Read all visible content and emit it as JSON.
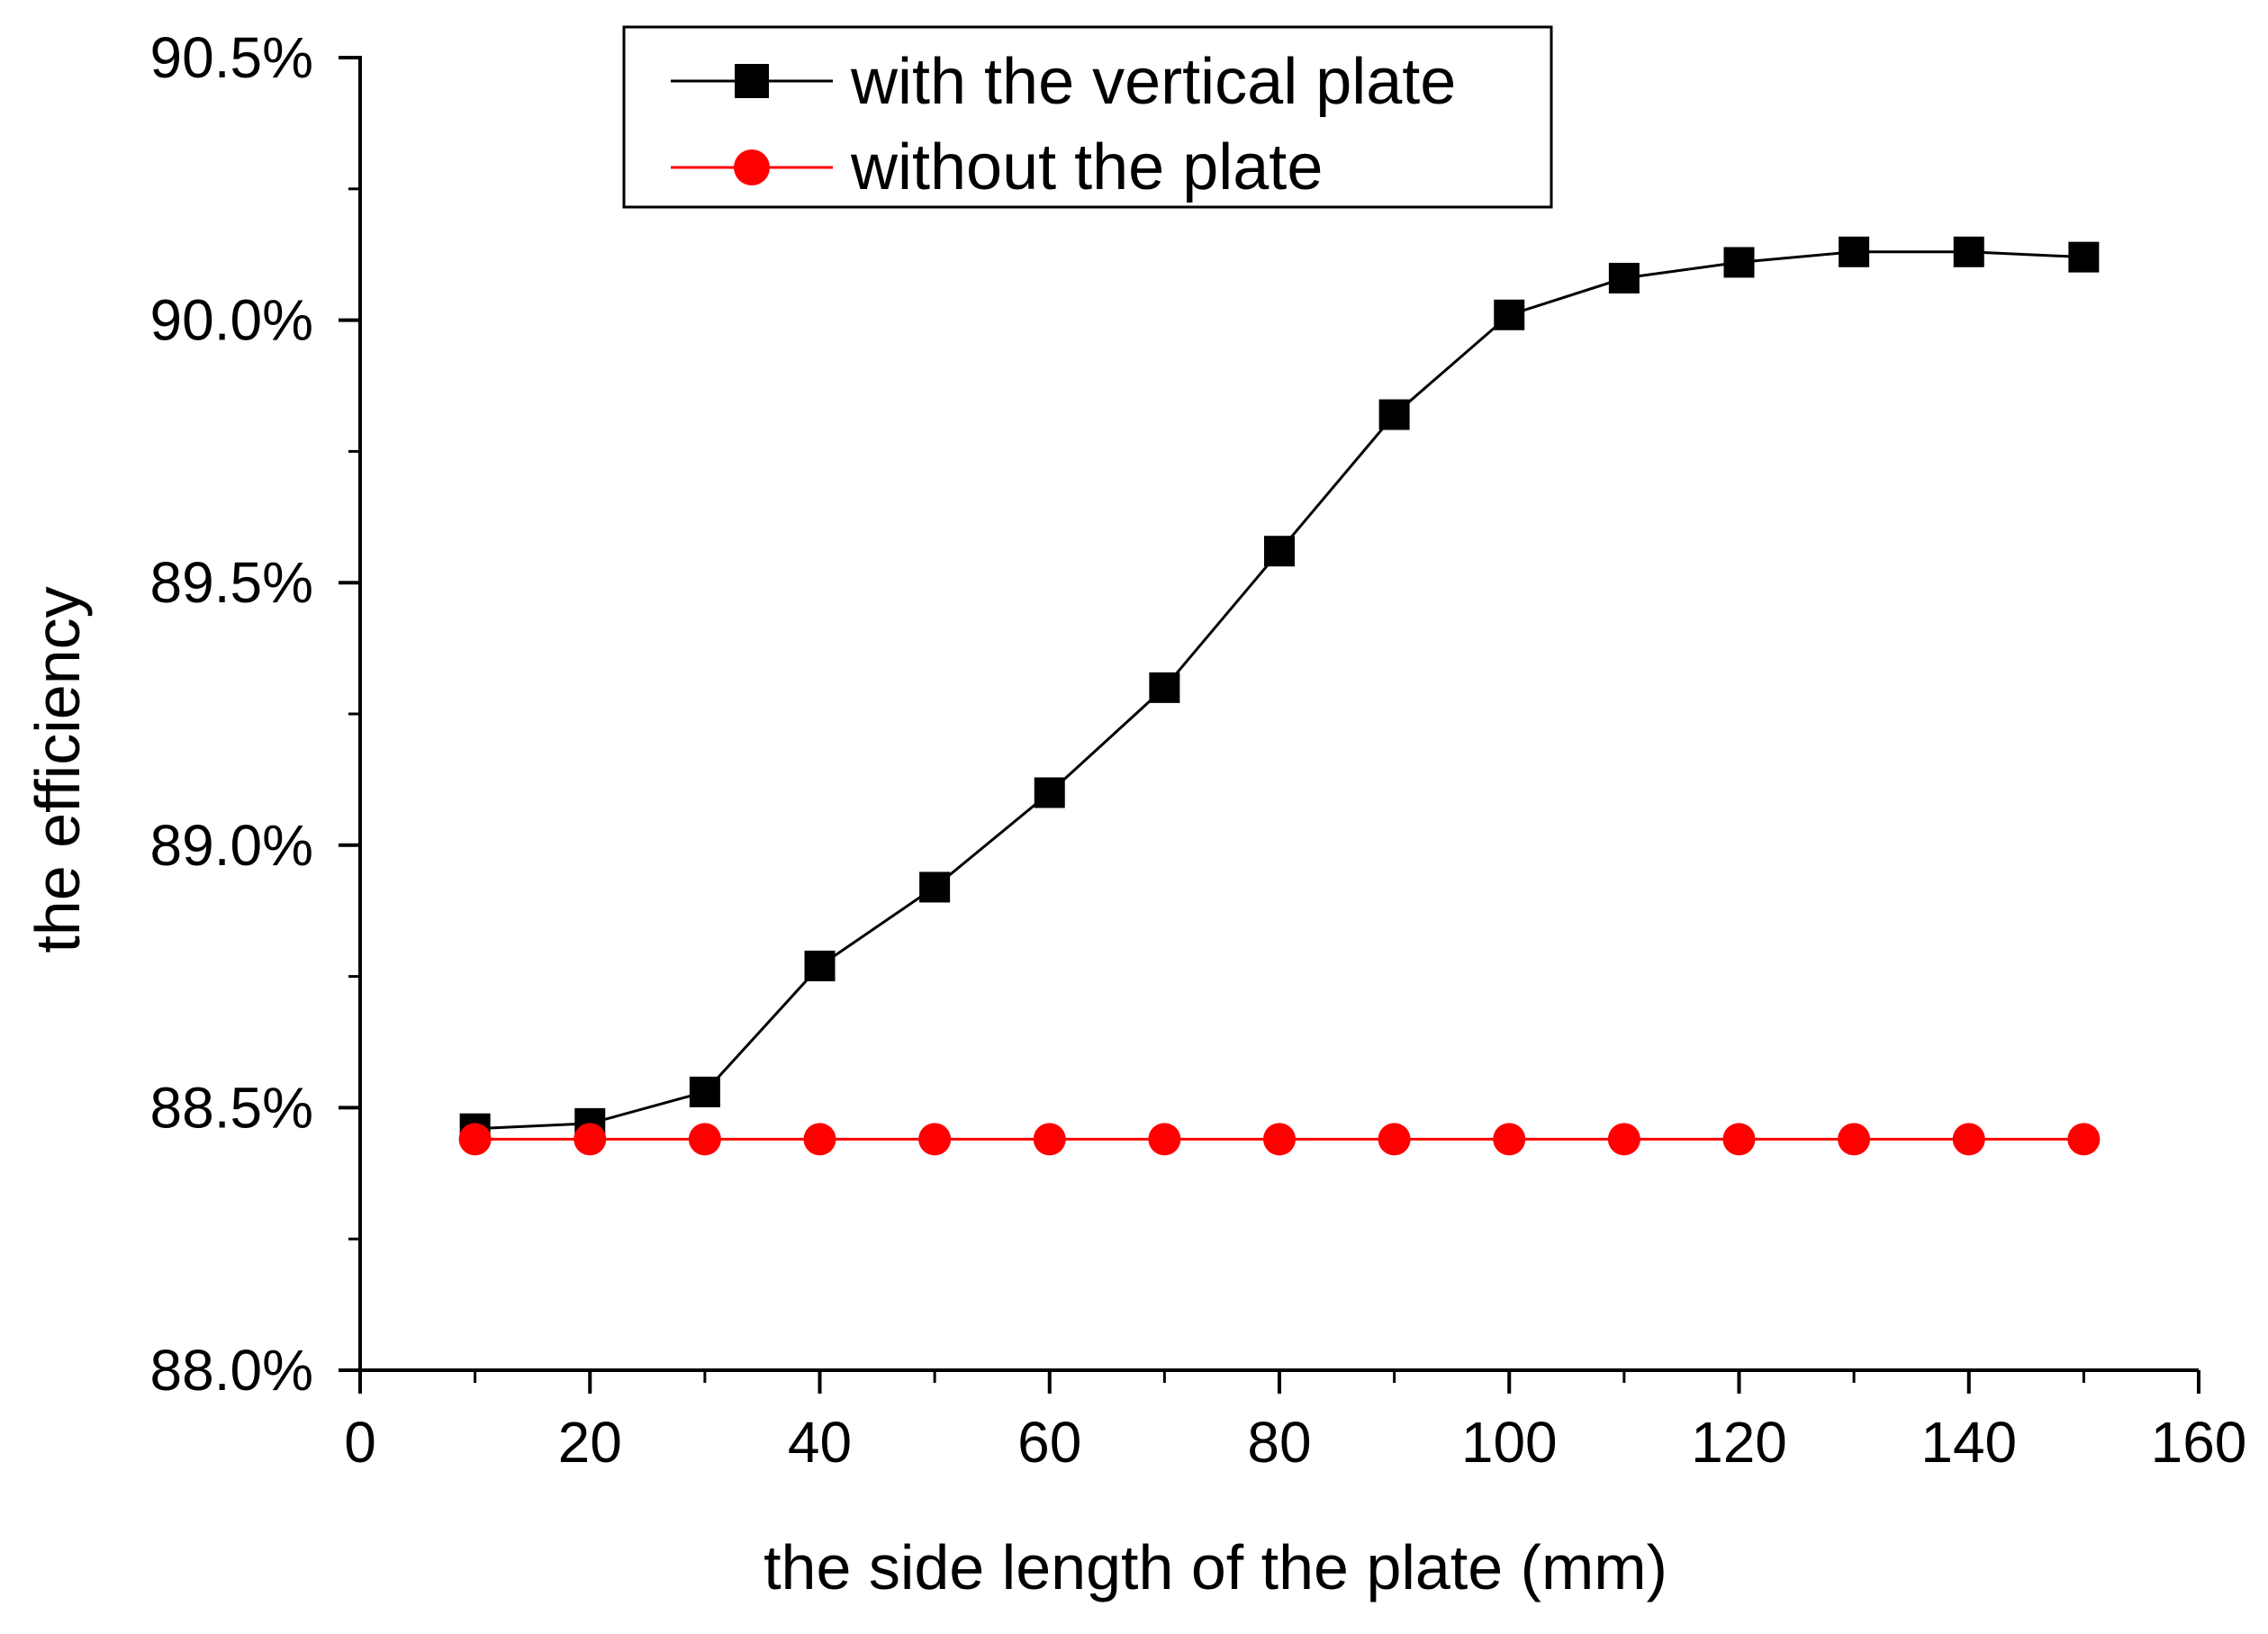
{
  "chart_data": {
    "type": "line",
    "title": "",
    "xlabel": "the side length of the plate (mm)",
    "ylabel": "the efficiency",
    "xlim": [
      0,
      160
    ],
    "ylim": [
      88.0,
      90.5
    ],
    "xticks": [
      0,
      20,
      40,
      60,
      80,
      100,
      120,
      140,
      160
    ],
    "xtick_labels": [
      "0",
      "20",
      "40",
      "60",
      "80",
      "100",
      "120",
      "140",
      "160"
    ],
    "yticks": [
      88.0,
      88.5,
      89.0,
      89.5,
      90.0,
      90.5
    ],
    "ytick_labels": [
      "88.0%",
      "88.5%",
      "89.0%",
      "89.5%",
      "90.0%",
      "90.5%"
    ],
    "grid": false,
    "legend_position": "top-center",
    "x": [
      10,
      20,
      30,
      40,
      50,
      60,
      70,
      80,
      90,
      100,
      110,
      120,
      130,
      140,
      150
    ],
    "series": [
      {
        "name": "with the vertical plate",
        "color": "#000000",
        "marker": "square",
        "values": [
          88.46,
          88.47,
          88.53,
          88.77,
          88.92,
          89.1,
          89.3,
          89.56,
          89.82,
          90.01,
          90.08,
          90.11,
          90.13,
          90.13,
          90.12
        ]
      },
      {
        "name": "without the plate",
        "color": "#ff0000",
        "marker": "circle",
        "values": [
          88.44,
          88.44,
          88.44,
          88.44,
          88.44,
          88.44,
          88.44,
          88.44,
          88.44,
          88.44,
          88.44,
          88.44,
          88.44,
          88.44,
          88.44
        ]
      }
    ]
  }
}
